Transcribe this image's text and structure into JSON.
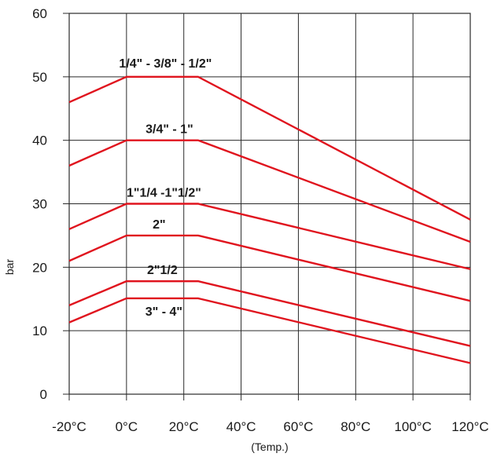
{
  "chart_data": {
    "type": "line",
    "title": "",
    "xlabel": "(Temp.)",
    "ylabel": "bar",
    "x_tick_labels": [
      "-20°C",
      "0°C",
      "20°C",
      "40°C",
      "60°C",
      "80°C",
      "100°C",
      "120°C"
    ],
    "x_tick_values": [
      -20,
      0,
      20,
      40,
      60,
      80,
      100,
      120
    ],
    "y_tick_labels": [
      "0",
      "10",
      "20",
      "30",
      "40",
      "50",
      "60"
    ],
    "y_tick_values": [
      0,
      10,
      20,
      30,
      40,
      50,
      60
    ],
    "xlim": [
      -20,
      120
    ],
    "ylim": [
      0,
      60
    ],
    "grid": true,
    "line_color": "#e0141e",
    "series": [
      {
        "name": "1/4\" - 3/8\" - 1/2\"",
        "x": [
          -20,
          0,
          25,
          120
        ],
        "y": [
          46,
          50,
          50,
          27.5
        ]
      },
      {
        "name": "3/4\" - 1\"",
        "x": [
          -20,
          0,
          25,
          120
        ],
        "y": [
          36,
          40,
          40,
          24
        ]
      },
      {
        "name": "1\"1/4 -1\"1/2\"",
        "x": [
          -20,
          0,
          25,
          120
        ],
        "y": [
          26,
          30,
          30,
          19.7
        ]
      },
      {
        "name": "2\"",
        "x": [
          -20,
          0,
          25,
          120
        ],
        "y": [
          21,
          25,
          25,
          14.7
        ]
      },
      {
        "name": "2\"1/2",
        "x": [
          -20,
          0,
          25,
          120
        ],
        "y": [
          14,
          17.8,
          17.8,
          7.6
        ]
      },
      {
        "name": "3\" - 4\"",
        "x": [
          -20,
          0,
          25,
          120
        ],
        "y": [
          11.3,
          15.1,
          15.1,
          4.9
        ]
      }
    ]
  }
}
